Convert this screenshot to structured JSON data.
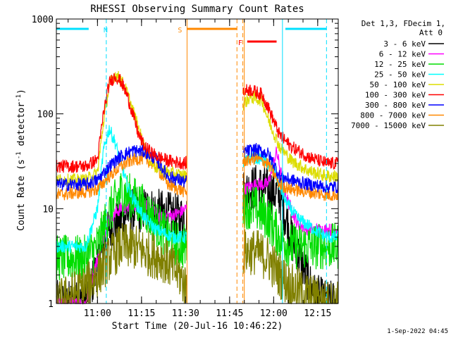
{
  "chart_data": {
    "type": "line",
    "title": "RHESSI Observing Summary Count Rates",
    "xlabel": "Start Time (20-Jul-16 10:46:22)",
    "ylabel_parts": [
      "Count Rate (s",
      "-1",
      " detector",
      "-1",
      ")"
    ],
    "yscale": "log",
    "ylim": [
      1,
      1000
    ],
    "xlim_minutes": [
      0,
      96
    ],
    "y_ticks": [
      {
        "value": 1,
        "label": "1"
      },
      {
        "value": 10,
        "label": "10"
      },
      {
        "value": 100,
        "label": "100"
      },
      {
        "value": 1000,
        "label": "1000"
      }
    ],
    "x_ticks": [
      {
        "minute": 14,
        "label": "11:00"
      },
      {
        "minute": 29,
        "label": "11:15"
      },
      {
        "minute": 44,
        "label": "11:30"
      },
      {
        "minute": 59,
        "label": "11:45"
      },
      {
        "minute": 74,
        "label": "12:00"
      },
      {
        "minute": 89,
        "label": "12:15"
      }
    ],
    "legend_header": [
      "Det 1,3, FDecim 1,",
      "Att 0"
    ],
    "gaps_minutes": [
      [
        44.5,
        63.5
      ]
    ],
    "series": [
      {
        "name": "3 - 6 keV",
        "color": "#000000",
        "t": [
          0,
          10,
          14,
          18,
          24,
          30,
          36,
          42,
          44,
          64,
          68,
          72,
          76,
          80,
          88,
          92
        ],
        "v": [
          1,
          1,
          2.5,
          6,
          9,
          10,
          9,
          8,
          8,
          15,
          17,
          16,
          14,
          5,
          1.2,
          1
        ]
      },
      {
        "name": "6 - 12 keV",
        "color": "#ff00ff",
        "t": [
          0,
          10,
          14,
          18,
          22,
          26,
          30,
          36,
          42,
          44,
          64,
          68,
          72,
          75,
          78,
          82,
          86,
          92
        ],
        "v": [
          1,
          1,
          3,
          8,
          10,
          11,
          11,
          8,
          9,
          10,
          16,
          18,
          18,
          40,
          14,
          7,
          6,
          6
        ]
      },
      {
        "name": "12 - 25 keV",
        "color": "#00dd00",
        "t": [
          0,
          10,
          14,
          18,
          22,
          26,
          30,
          34,
          38,
          42,
          44,
          64,
          68,
          72,
          76,
          80,
          86,
          92
        ],
        "v": [
          3,
          3,
          4,
          9,
          15,
          13,
          10,
          7,
          5,
          4,
          4,
          11,
          10,
          8,
          5,
          4,
          4,
          4
        ]
      },
      {
        "name": "25 - 50 keV",
        "color": "#00ffff",
        "t": [
          0,
          10,
          14,
          16,
          18,
          20,
          22,
          24,
          26,
          30,
          34,
          40,
          44,
          64,
          66,
          70,
          74,
          78,
          82,
          88,
          92
        ],
        "v": [
          4,
          4,
          10,
          40,
          70,
          50,
          30,
          18,
          13,
          8,
          6,
          5,
          5,
          30,
          35,
          34,
          26,
          12,
          8,
          6,
          5
        ]
      },
      {
        "name": "50 - 100 keV",
        "color": "#dddd00",
        "t": [
          0,
          10,
          14,
          16,
          18,
          20,
          22,
          24,
          26,
          28,
          30,
          32,
          34,
          38,
          44,
          64,
          66,
          70,
          72,
          76,
          80,
          86,
          92
        ],
        "v": [
          20,
          20,
          24,
          80,
          200,
          260,
          230,
          170,
          110,
          70,
          45,
          32,
          27,
          24,
          22,
          130,
          150,
          140,
          90,
          45,
          32,
          25,
          22
        ]
      },
      {
        "name": "100 - 300 keV",
        "color": "#ff0000",
        "t": [
          0,
          10,
          14,
          16,
          18,
          20,
          22,
          24,
          26,
          28,
          30,
          32,
          34,
          38,
          44,
          64,
          66,
          70,
          72,
          76,
          80,
          86,
          92
        ],
        "v": [
          28,
          28,
          33,
          100,
          210,
          250,
          220,
          160,
          100,
          60,
          45,
          40,
          36,
          32,
          30,
          175,
          180,
          160,
          120,
          60,
          45,
          35,
          30
        ]
      },
      {
        "name": "300 - 800 keV",
        "color": "#0000ff",
        "t": [
          0,
          10,
          14,
          18,
          22,
          26,
          30,
          34,
          38,
          44,
          64,
          68,
          72,
          74,
          76,
          80,
          86,
          92
        ],
        "v": [
          18,
          18,
          20,
          28,
          36,
          41,
          40,
          33,
          22,
          19,
          40,
          42,
          38,
          30,
          22,
          20,
          18,
          17
        ]
      },
      {
        "name": "800 - 7000 keV",
        "color": "#ff8800",
        "t": [
          0,
          10,
          14,
          18,
          22,
          26,
          30,
          34,
          38,
          44,
          64,
          68,
          72,
          74,
          76,
          80,
          86,
          92
        ],
        "v": [
          14,
          15,
          16,
          22,
          28,
          33,
          34,
          28,
          18,
          15,
          32,
          34,
          30,
          24,
          18,
          16,
          15,
          14
        ]
      },
      {
        "name": "7000 - 15000 keV",
        "color": "#808000",
        "t": [
          0,
          10,
          14,
          18,
          22,
          26,
          30,
          36,
          42,
          44,
          64,
          68,
          72,
          76,
          80,
          86,
          92
        ],
        "v": [
          1,
          1.5,
          2,
          3,
          4,
          4,
          3.5,
          3,
          2,
          1.5,
          3.5,
          3.5,
          3,
          2,
          1.5,
          1.2,
          1
        ]
      }
    ],
    "annotations": [
      {
        "label": "N",
        "color": "#00e0ff",
        "bar_minutes": [
          0,
          11
        ],
        "markers_minutes": [
          17,
          92
        ],
        "row": "upper"
      },
      {
        "label": "S",
        "color": "#ff8800",
        "bar_minutes": [
          44.5,
          61.5
        ],
        "markers_minutes": [
          44.5,
          61.5,
          63.5
        ],
        "row": "upper"
      },
      {
        "label": "F",
        "color": "#ff0000",
        "bar_minutes": [
          65,
          75
        ],
        "markers_minutes": [],
        "row": "lower"
      },
      {
        "label": "",
        "color": "#00e0ff",
        "bar_minutes": [
          78,
          92
        ],
        "markers_minutes": [
          77
        ],
        "row": "upper"
      }
    ]
  },
  "timestamp": "1-Sep-2022 04:45"
}
